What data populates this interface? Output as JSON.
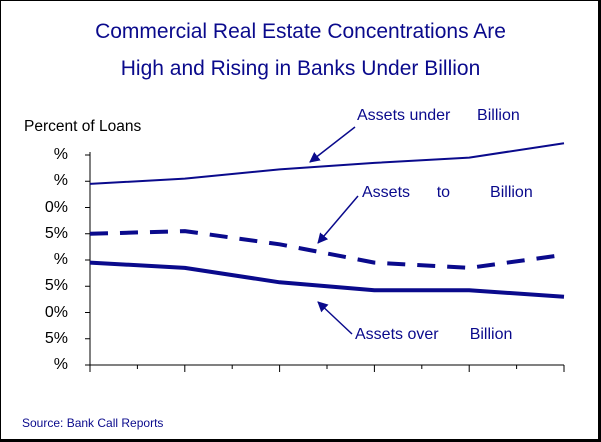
{
  "chart_data": {
    "type": "line",
    "title_line1": "Commercial Real Estate Concentrations Are",
    "title_line2": "High and Rising in Banks Under       Billion",
    "ylabel": "Percent of Loans",
    "y_tick_labels": [
      "%",
      "%",
      "0%",
      "5%",
      "%",
      "5%",
      "0%",
      "5%",
      "%"
    ],
    "ylim": [
      0,
      8
    ],
    "x_periods": 5,
    "series": [
      {
        "name": "Assets under      Billion",
        "style": "solid-thin",
        "color": "#0a0a8c",
        "values": [
          6.9,
          7.1,
          7.45,
          7.7,
          7.9,
          8.45
        ]
      },
      {
        "name": "Assets      to         Billion",
        "style": "dashed-thick",
        "color": "#0a0a8c",
        "values": [
          5.0,
          5.1,
          4.6,
          3.9,
          3.7,
          4.2
        ]
      },
      {
        "name": "Assets over       Billion",
        "style": "solid-thick",
        "color": "#0a0a8c",
        "values": [
          3.9,
          3.7,
          3.15,
          2.85,
          2.85,
          2.6
        ]
      }
    ],
    "source": "Source:  Bank Call Reports"
  },
  "colors": {
    "series": "#0a0a8c",
    "axis": "#000000",
    "frame": "#000000"
  }
}
